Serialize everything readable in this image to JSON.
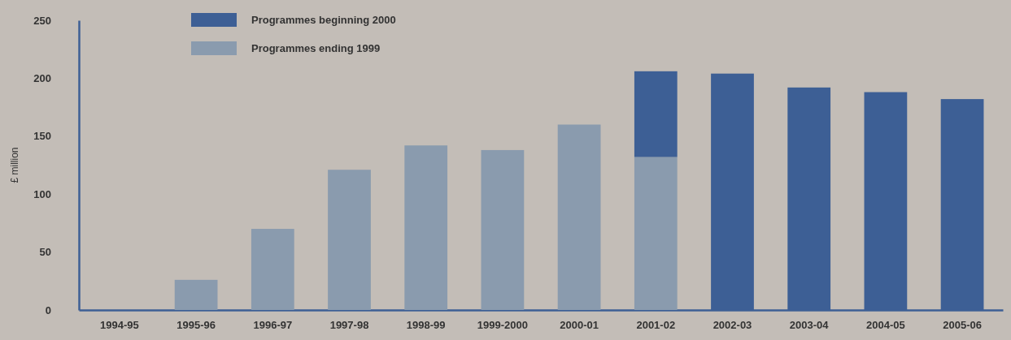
{
  "chart_data": {
    "type": "bar",
    "stacked": true,
    "ylabel": "£ million",
    "categories": [
      "1994-95",
      "1995-96",
      "1996-97",
      "1997-98",
      "1998-99",
      "1999-2000",
      "2000-01",
      "2001-02",
      "2002-03",
      "2003-04",
      "2004-05",
      "2005-06"
    ],
    "series": [
      {
        "name": "Programmes ending 1999",
        "color": "#8a9bae",
        "values": [
          0,
          26,
          70,
          121,
          142,
          138,
          160,
          132,
          null,
          null,
          null,
          null
        ]
      },
      {
        "name": "Programmes beginning 2000",
        "color": "#3d5f95",
        "values": [
          null,
          null,
          null,
          null,
          null,
          null,
          null,
          74,
          204,
          192,
          188,
          182
        ]
      }
    ],
    "ylim": [
      0,
      250
    ],
    "yticks": [
      0,
      50,
      100,
      150,
      200,
      250
    ],
    "grid": false,
    "legend": "top left"
  }
}
